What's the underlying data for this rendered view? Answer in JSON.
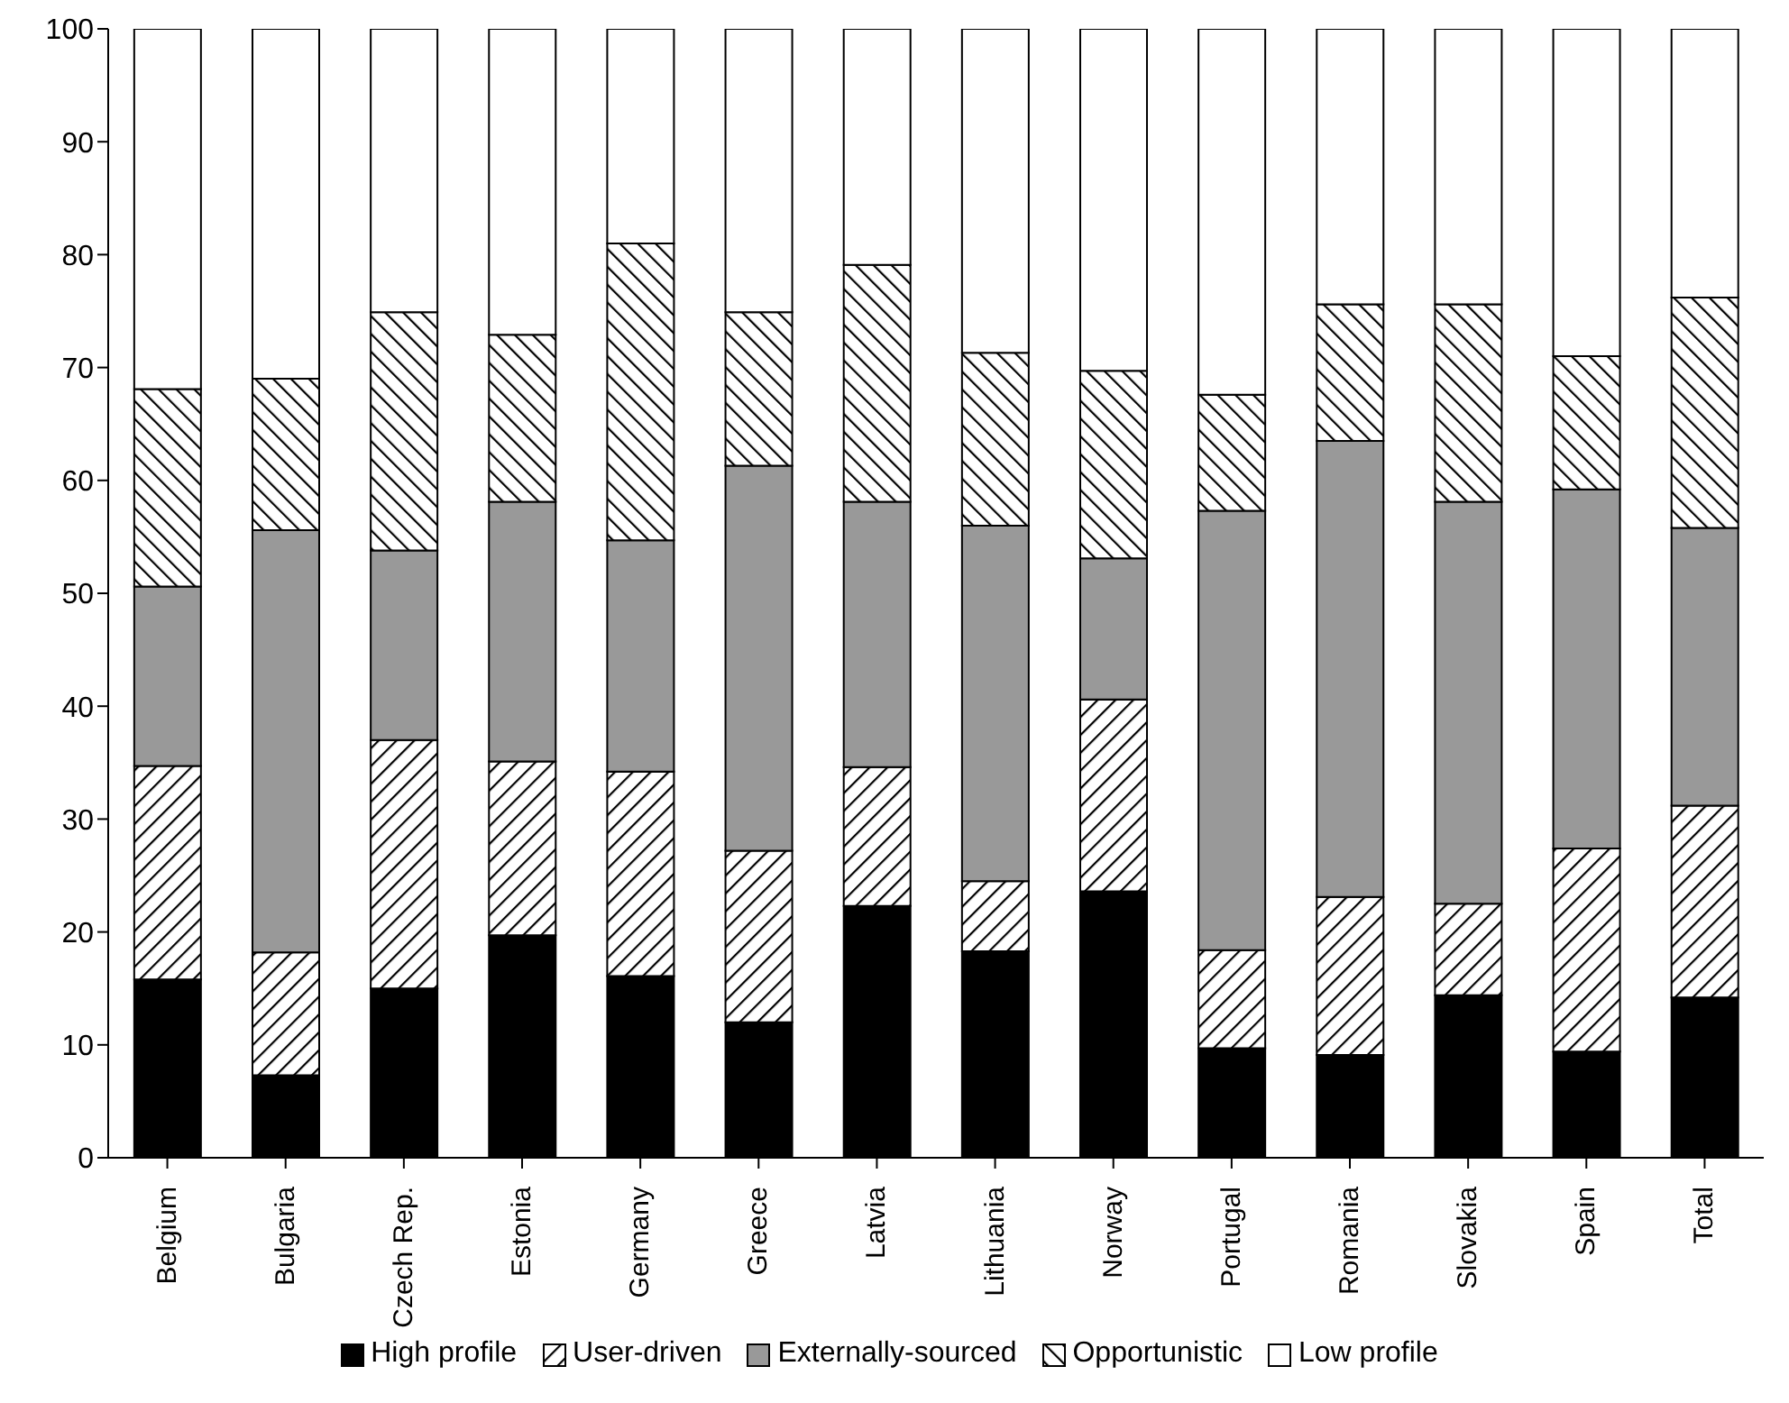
{
  "chart_data": {
    "type": "bar",
    "stacked": true,
    "categories": [
      "Belgium",
      "Bulgaria",
      "Czech Rep.",
      "Estonia",
      "Germany",
      "Greece",
      "Latvia",
      "Lithuania",
      "Norway",
      "Portugal",
      "Romania",
      "Slovakia",
      "Spain",
      "Total"
    ],
    "series": [
      {
        "name": "High profile",
        "color": "#000000",
        "values": [
          15.8,
          7.3,
          15.0,
          19.7,
          16.1,
          12.0,
          22.3,
          18.3,
          23.6,
          9.7,
          9.1,
          14.4,
          9.4,
          14.2
        ]
      },
      {
        "name": "User-driven",
        "color": "#000000",
        "values": [
          18.9,
          10.9,
          22.0,
          15.4,
          18.1,
          15.2,
          12.3,
          6.2,
          17.0,
          8.7,
          14.0,
          8.1,
          18.0,
          17.0
        ]
      },
      {
        "name": "Externally-sourced",
        "color": "#999999",
        "values": [
          15.9,
          37.4,
          16.8,
          23.0,
          20.5,
          34.1,
          23.5,
          31.5,
          12.5,
          38.9,
          40.4,
          35.6,
          31.8,
          24.6
        ]
      },
      {
        "name": "Opportunistic",
        "color": "#000000",
        "values": [
          17.5,
          13.4,
          21.1,
          14.8,
          26.3,
          13.6,
          21.0,
          15.3,
          16.6,
          10.3,
          12.1,
          17.5,
          11.8,
          20.4
        ]
      },
      {
        "name": "Low profile",
        "color": "#ffffff",
        "values": [
          31.9,
          31.0,
          25.1,
          27.1,
          19.0,
          25.1,
          20.9,
          28.7,
          30.3,
          32.4,
          24.4,
          24.4,
          29.0,
          23.8
        ]
      }
    ],
    "ylim": [
      0,
      100
    ],
    "yticks": [
      0,
      10,
      20,
      30,
      40,
      50,
      60,
      70,
      80,
      90,
      100
    ],
    "grid": false,
    "legend": "bottom"
  }
}
